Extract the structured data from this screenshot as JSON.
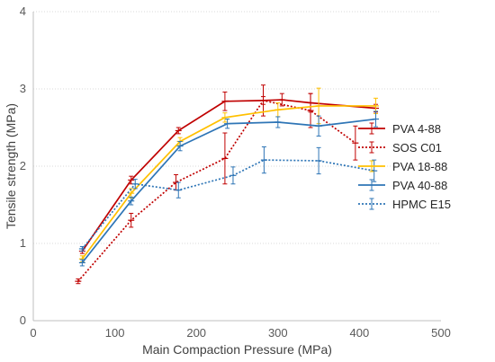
{
  "chart_data": {
    "type": "line",
    "xlabel": "Main Compaction Pressure (MPa)",
    "ylabel": "Tensile strength (MPa)",
    "xlim": [
      0,
      500
    ],
    "ylim": [
      0,
      4
    ],
    "xticks": [
      "0",
      "100",
      "200",
      "300",
      "400",
      "500"
    ],
    "yticks": [
      "0",
      "1",
      "2",
      "3",
      "4"
    ],
    "grid": "horizontal dotted",
    "legend_position": "right",
    "series": [
      {
        "name": "PVA 4-88",
        "color": "#c00000",
        "dash": "solid",
        "points": [
          [
            60,
            0.9,
            0.03
          ],
          [
            120,
            1.82,
            0.05
          ],
          [
            178,
            2.46,
            0.04
          ],
          [
            235,
            2.84,
            0.12
          ],
          [
            282,
            2.85,
            0.2
          ],
          [
            305,
            2.86,
            0.08
          ],
          [
            340,
            2.82,
            0.12
          ],
          [
            420,
            2.75,
            0.05
          ]
        ]
      },
      {
        "name": "SOS C01",
        "color": "#c00000",
        "dash": "dotted",
        "points": [
          [
            55,
            0.51,
            0.03
          ],
          [
            120,
            1.3,
            0.09
          ],
          [
            175,
            1.79,
            0.1
          ],
          [
            235,
            2.1,
            0.33
          ],
          [
            282,
            2.85,
            0.05
          ],
          [
            340,
            2.72,
            0.22
          ],
          [
            395,
            2.3,
            0.22
          ]
        ]
      },
      {
        "name": "PVA 18-88",
        "color": "#ffc000",
        "dash": "solid",
        "points": [
          [
            60,
            0.8,
            0.04
          ],
          [
            120,
            1.65,
            0.06
          ],
          [
            180,
            2.32,
            0.05
          ],
          [
            235,
            2.63,
            0.06
          ],
          [
            300,
            2.73,
            0.09
          ],
          [
            350,
            2.78,
            0.23
          ],
          [
            420,
            2.78,
            0.1
          ]
        ]
      },
      {
        "name": "PVA 40-88",
        "color": "#2e75b6",
        "dash": "solid",
        "points": [
          [
            60,
            0.75,
            0.04
          ],
          [
            120,
            1.55,
            0.05
          ],
          [
            180,
            2.26,
            0.06
          ],
          [
            238,
            2.55,
            0.06
          ],
          [
            300,
            2.57,
            0.07
          ],
          [
            350,
            2.52,
            0.13
          ],
          [
            420,
            2.61,
            0.1
          ]
        ]
      },
      {
        "name": "HPMC E15",
        "color": "#2e75b6",
        "dash": "dotted",
        "points": [
          [
            60,
            0.93,
            0.03
          ],
          [
            125,
            1.77,
            0.06
          ],
          [
            178,
            1.69,
            0.1
          ],
          [
            245,
            1.88,
            0.11
          ],
          [
            283,
            2.08,
            0.17
          ],
          [
            350,
            2.07,
            0.17
          ],
          [
            418,
            1.94,
            0.14
          ]
        ]
      }
    ]
  }
}
